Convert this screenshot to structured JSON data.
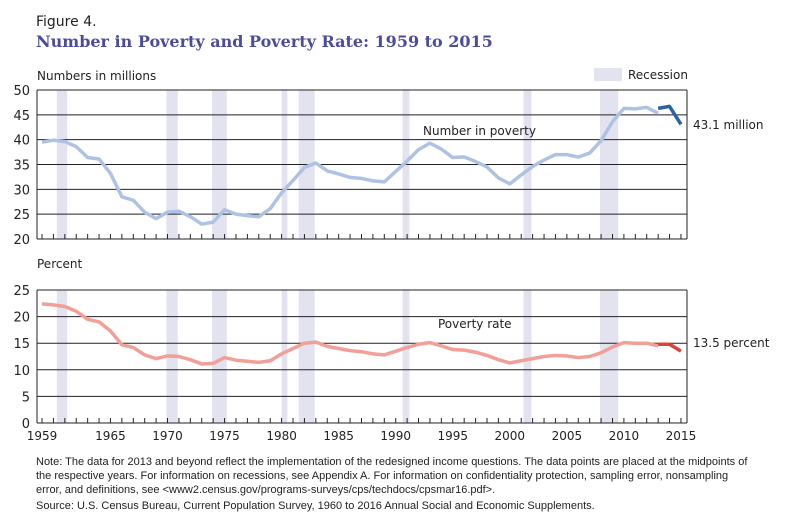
{
  "figure_label": "Figure 4.",
  "title": "Number in Poverty and Poverty Rate: 1959 to 2015",
  "legend": {
    "recession_label": "Recession",
    "recession_color": "#e3e3f0"
  },
  "notes": {
    "note": "Note: The data for 2013 and beyond reflect the implementation of the redesigned income questions. The data points are placed at the midpoints of the respective years. For information on recessions, see Appendix A. For information on confidentiality protection, sampling error, nonsampling error, and definitions, see <www2.census.gov/programs-surveys/cps/techdocs/cpsmar16.pdf>.",
    "source": "Source: U.S. Census Bureau, Current Population Survey, 1960 to 2016 Annual Social and Economic Supplements."
  },
  "chart_data": [
    {
      "type": "line",
      "ylabel": "Numbers in millions",
      "ylim": [
        20,
        50
      ],
      "yticks": [
        20,
        25,
        30,
        35,
        40,
        45,
        50
      ],
      "grid": true,
      "series_label": "Number in poverty",
      "end_label": "43.1 million",
      "recessions": [
        [
          1960.3,
          1961.2
        ],
        [
          1969.9,
          1970.9
        ],
        [
          1973.9,
          1975.2
        ],
        [
          1980.0,
          1980.5
        ],
        [
          1981.5,
          1982.9
        ],
        [
          1990.6,
          1991.2
        ],
        [
          2001.2,
          2001.9
        ],
        [
          2007.9,
          2009.5
        ]
      ],
      "series": [
        {
          "color": "#aec3e3",
          "x": [
            1959,
            1960,
            1961,
            1962,
            1963,
            1964,
            1965,
            1966,
            1967,
            1968,
            1969,
            1970,
            1971,
            1972,
            1973,
            1974,
            1975,
            1976,
            1977,
            1978,
            1979,
            1980,
            1981,
            1982,
            1983,
            1984,
            1985,
            1986,
            1987,
            1988,
            1989,
            1990,
            1991,
            1992,
            1993,
            1994,
            1995,
            1996,
            1997,
            1998,
            1999,
            2000,
            2001,
            2002,
            2003,
            2004,
            2005,
            2006,
            2007,
            2008,
            2009,
            2010,
            2011,
            2012,
            2013
          ],
          "y": [
            39.5,
            39.9,
            39.6,
            38.6,
            36.4,
            36.1,
            33.2,
            28.5,
            27.8,
            25.4,
            24.1,
            25.4,
            25.6,
            24.5,
            23.0,
            23.4,
            25.9,
            25.0,
            24.7,
            24.5,
            26.1,
            29.3,
            31.8,
            34.4,
            35.3,
            33.7,
            33.1,
            32.4,
            32.2,
            31.7,
            31.5,
            33.6,
            35.7,
            38.0,
            39.3,
            38.1,
            36.4,
            36.5,
            35.6,
            34.5,
            32.3,
            31.1,
            32.9,
            34.6,
            35.9,
            37.0,
            37.0,
            36.5,
            37.3,
            39.8,
            43.6,
            46.3,
            46.2,
            46.5,
            45.3
          ]
        },
        {
          "color": "#2a62a8",
          "x": [
            2013,
            2014,
            2015
          ],
          "y": [
            46.3,
            46.7,
            43.1
          ]
        }
      ]
    },
    {
      "type": "line",
      "ylabel": "Percent",
      "ylim": [
        0,
        25
      ],
      "yticks": [
        0,
        5,
        10,
        15,
        20,
        25
      ],
      "grid": true,
      "series_label": "Poverty rate",
      "end_label": "13.5 percent",
      "xticks": [
        1959,
        1965,
        1970,
        1975,
        1980,
        1985,
        1990,
        1995,
        2000,
        2005,
        2010,
        2015
      ],
      "recessions": [
        [
          1960.3,
          1961.2
        ],
        [
          1969.9,
          1970.9
        ],
        [
          1973.9,
          1975.2
        ],
        [
          1980.0,
          1980.5
        ],
        [
          1981.5,
          1982.9
        ],
        [
          1990.6,
          1991.2
        ],
        [
          2001.2,
          2001.9
        ],
        [
          2007.9,
          2009.5
        ]
      ],
      "series": [
        {
          "color": "#f2a097",
          "x": [
            1959,
            1960,
            1961,
            1962,
            1963,
            1964,
            1965,
            1966,
            1967,
            1968,
            1969,
            1970,
            1971,
            1972,
            1973,
            1974,
            1975,
            1976,
            1977,
            1978,
            1979,
            1980,
            1981,
            1982,
            1983,
            1984,
            1985,
            1986,
            1987,
            1988,
            1989,
            1990,
            1991,
            1992,
            1993,
            1994,
            1995,
            1996,
            1997,
            1998,
            1999,
            2000,
            2001,
            2002,
            2003,
            2004,
            2005,
            2006,
            2007,
            2008,
            2009,
            2010,
            2011,
            2012,
            2013
          ],
          "y": [
            22.4,
            22.2,
            21.9,
            21.0,
            19.5,
            19.0,
            17.3,
            14.7,
            14.2,
            12.8,
            12.1,
            12.6,
            12.5,
            11.9,
            11.1,
            11.2,
            12.3,
            11.8,
            11.6,
            11.4,
            11.7,
            13.0,
            14.0,
            15.0,
            15.2,
            14.4,
            14.0,
            13.6,
            13.4,
            13.0,
            12.8,
            13.5,
            14.2,
            14.8,
            15.1,
            14.5,
            13.8,
            13.7,
            13.3,
            12.7,
            11.9,
            11.3,
            11.7,
            12.1,
            12.5,
            12.7,
            12.6,
            12.3,
            12.5,
            13.2,
            14.3,
            15.1,
            15.0,
            15.0,
            14.5
          ]
        },
        {
          "color": "#d9453a",
          "x": [
            2013,
            2014,
            2015
          ],
          "y": [
            14.8,
            14.8,
            13.5
          ]
        }
      ]
    }
  ]
}
